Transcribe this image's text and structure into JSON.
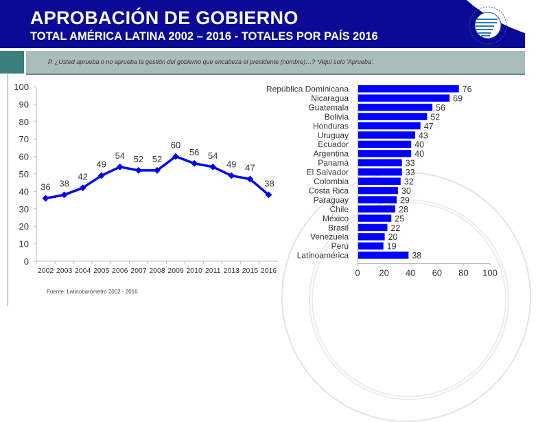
{
  "header": {
    "title": "APROBACIÓN DE GOBIERNO",
    "subtitle": "TOTAL AMÉRICA LATINA 2002 – 2016 - TOTALES POR PAÍS 2016",
    "logo": "latinobarometro-logo-icon",
    "colors": {
      "header_bg": "#0a0a96",
      "band": "#a9bdbb",
      "band_accent": "#3a7f7a",
      "series": "#0000ff"
    }
  },
  "question": "P. ¿Usted aprueba o no aprueba la gestión del gobierno que encabeza el presidente (nombre)…? *Aquí solo 'Aprueba'.",
  "source": "Fuente: Latinobarómetro 2002 - 2016",
  "chart_data": [
    {
      "type": "line",
      "title": "",
      "xlabel": "",
      "ylabel": "",
      "x": [
        "2002",
        "2003",
        "2004",
        "2005",
        "2006",
        "2007",
        "2008",
        "2009",
        "2010",
        "2011",
        "2013",
        "2015",
        "2016"
      ],
      "series": [
        {
          "name": "Total América Latina",
          "values": [
            36,
            38,
            42,
            49,
            54,
            52,
            52,
            60,
            56,
            54,
            49,
            47,
            38
          ]
        }
      ],
      "ylim": [
        0,
        100
      ],
      "yticks": [
        0,
        10,
        20,
        30,
        40,
        50,
        60,
        70,
        80,
        90,
        100
      ],
      "grid": false,
      "data_labels": true
    },
    {
      "type": "bar",
      "orientation": "horizontal",
      "title": "",
      "categories": [
        "República Dominicana",
        "Nicaragua",
        "Guatemala",
        "Bolivia",
        "Honduras",
        "Uruguay",
        "Ecuador",
        "Argentina",
        "Panamá",
        "El Salvador",
        "Colombia",
        "Costa Rica",
        "Paraguay",
        "Chile",
        "México",
        "Brasil",
        "Venezuela",
        "Perú",
        "Latinoamérica"
      ],
      "values": [
        76,
        69,
        56,
        52,
        47,
        43,
        40,
        40,
        33,
        33,
        32,
        30,
        29,
        28,
        25,
        22,
        20,
        19,
        38
      ],
      "xlim": [
        0,
        100
      ],
      "xticks": [
        0,
        20,
        40,
        60,
        80,
        100
      ],
      "grid": false,
      "data_labels": true
    }
  ]
}
